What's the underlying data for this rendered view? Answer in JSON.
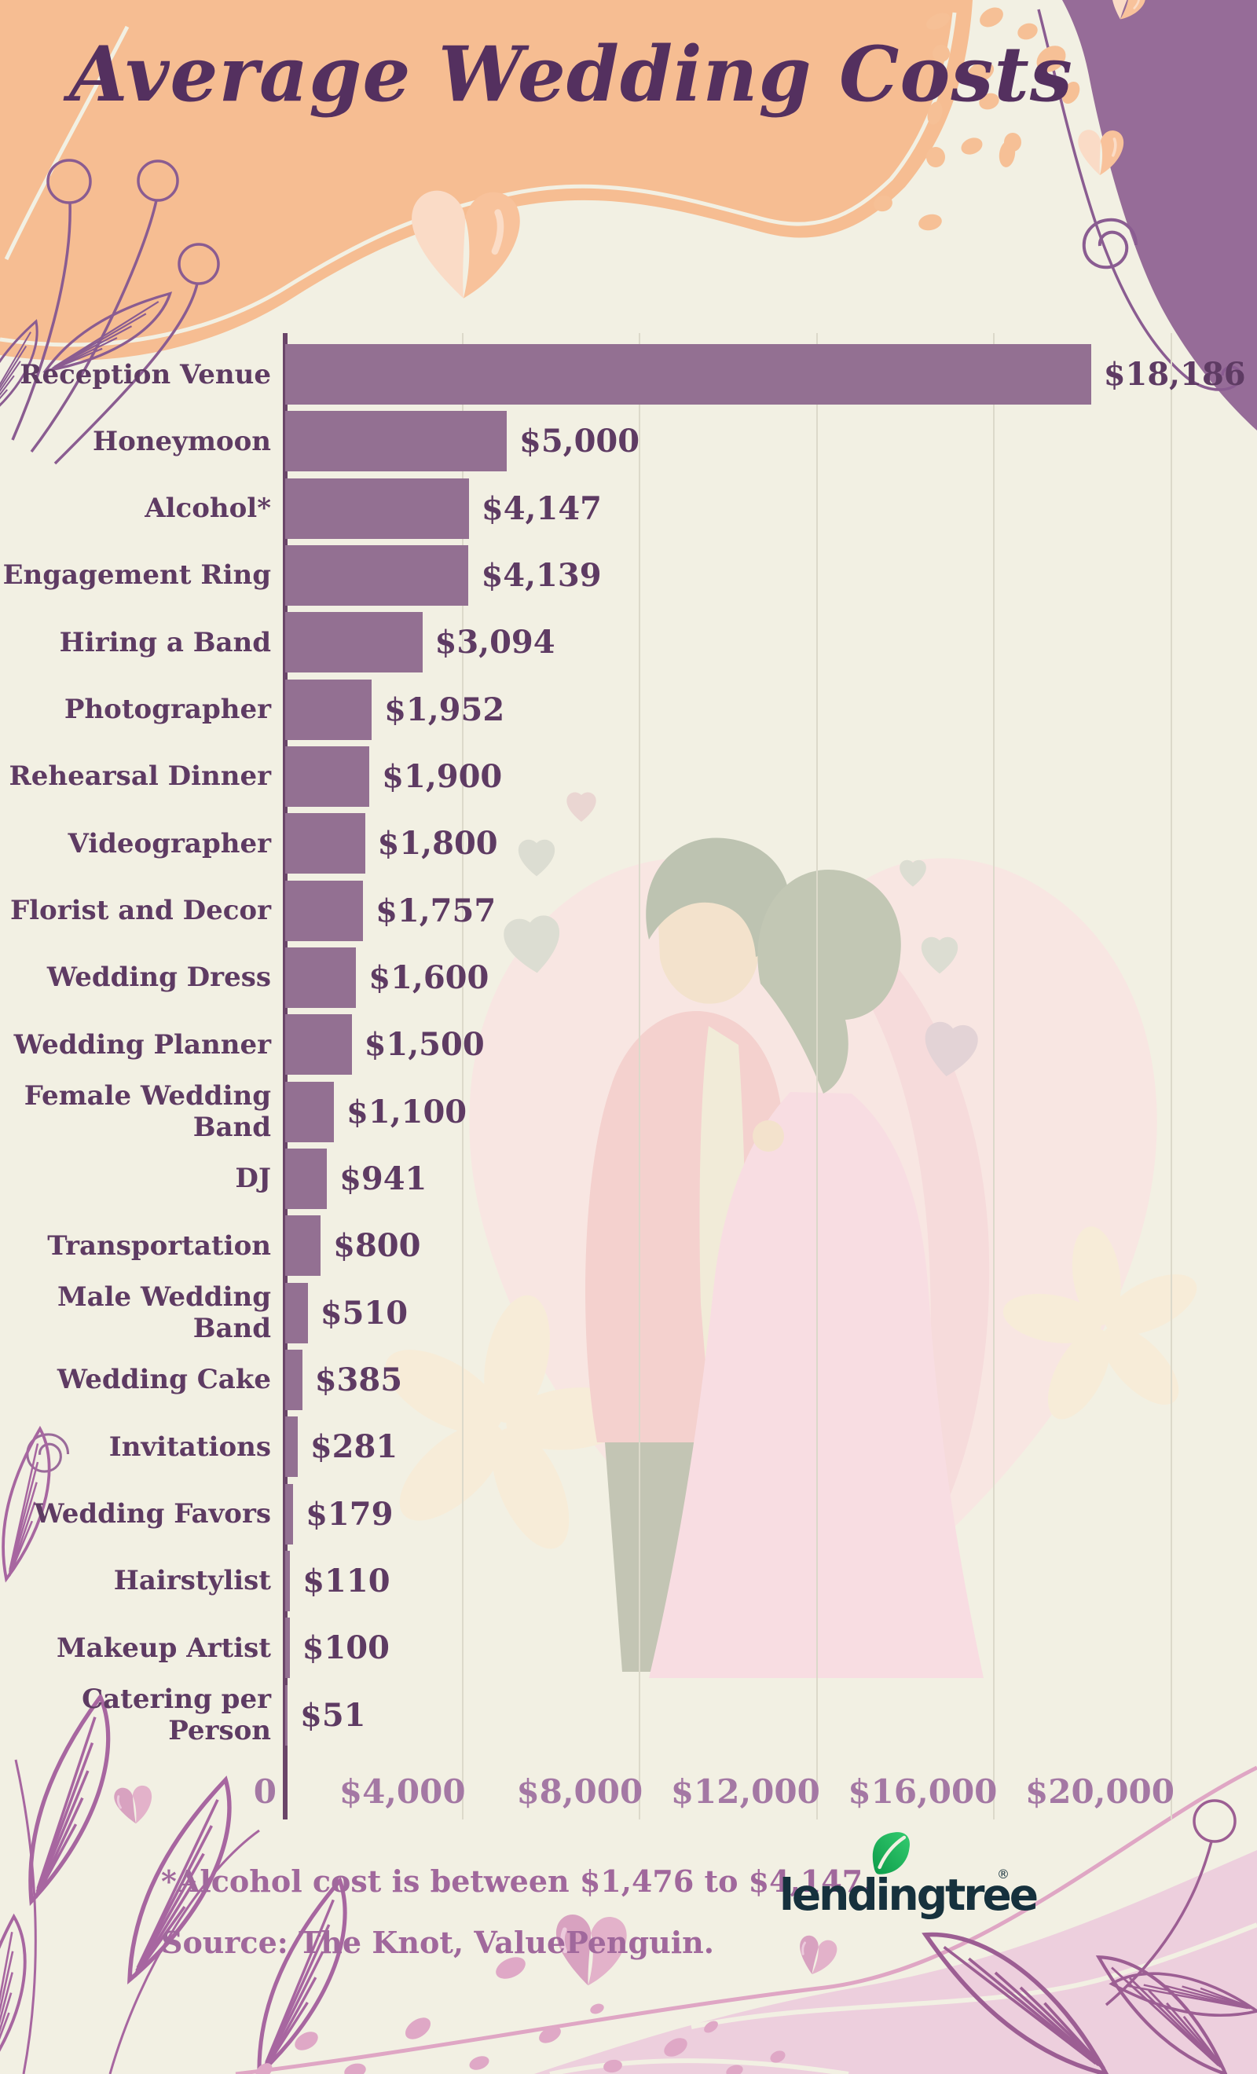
{
  "title": "Average Wedding Costs",
  "chart_data": {
    "type": "bar",
    "orientation": "horizontal",
    "title": "Average Wedding Costs",
    "categories": [
      "Reception Venue",
      "Honeymoon",
      "Alcohol*",
      "Engagement Ring",
      "Hiring a Band",
      "Photographer",
      "Rehearsal Dinner",
      "Videographer",
      "Florist and Decor",
      "Wedding Dress",
      "Wedding Planner",
      "Female Wedding Band",
      "DJ",
      "Transportation",
      "Male Wedding Band",
      "Wedding Cake",
      "Invitations",
      "Wedding Favors",
      "Hairstylist",
      "Makeup Artist",
      "Catering per Person"
    ],
    "values": [
      18186,
      5000,
      4147,
      4139,
      3094,
      1952,
      1900,
      1800,
      1757,
      1600,
      1500,
      1100,
      941,
      800,
      510,
      385,
      281,
      179,
      110,
      100,
      51
    ],
    "value_labels": [
      "$18,186",
      "$5,000",
      "$4,147",
      "$4,139",
      "$3,094",
      "$1,952",
      "$1,900",
      "$1,800",
      "$1,757",
      "$1,600",
      "$1,500",
      "$1,100",
      "$941",
      "$800",
      "$510",
      "$385",
      "$281",
      "$179",
      "$110",
      "$100",
      "$51"
    ],
    "x_ticks": [
      "0",
      "$4,000",
      "$8,000",
      "$12,000",
      "$16,000",
      "$20,000"
    ],
    "x_tick_values": [
      0,
      4000,
      8000,
      12000,
      16000,
      20000
    ],
    "xlim": [
      0,
      21200
    ],
    "grid": true,
    "bar_color": "#937092",
    "label_color": "#5e3b63",
    "tick_color": "#a478a4",
    "axis_color": "#6a4569",
    "gridline_color": "#dcd9ca"
  },
  "footnote": "*Alcohol cost is between $1,476 to $4,147.",
  "source": "Source: The Knot, ValuePenguin.",
  "logo": {
    "text": "lendingtree",
    "registered": "®",
    "leaf_color": "#21b15b",
    "text_color": "#16313d"
  },
  "colors": {
    "background": "#f2f0e3",
    "title": "#54305f",
    "peach_blob": "#f6bd92",
    "purple_blob": "#966c98",
    "footnote": "#a0689c",
    "pink_wave": "#edcfdd"
  }
}
